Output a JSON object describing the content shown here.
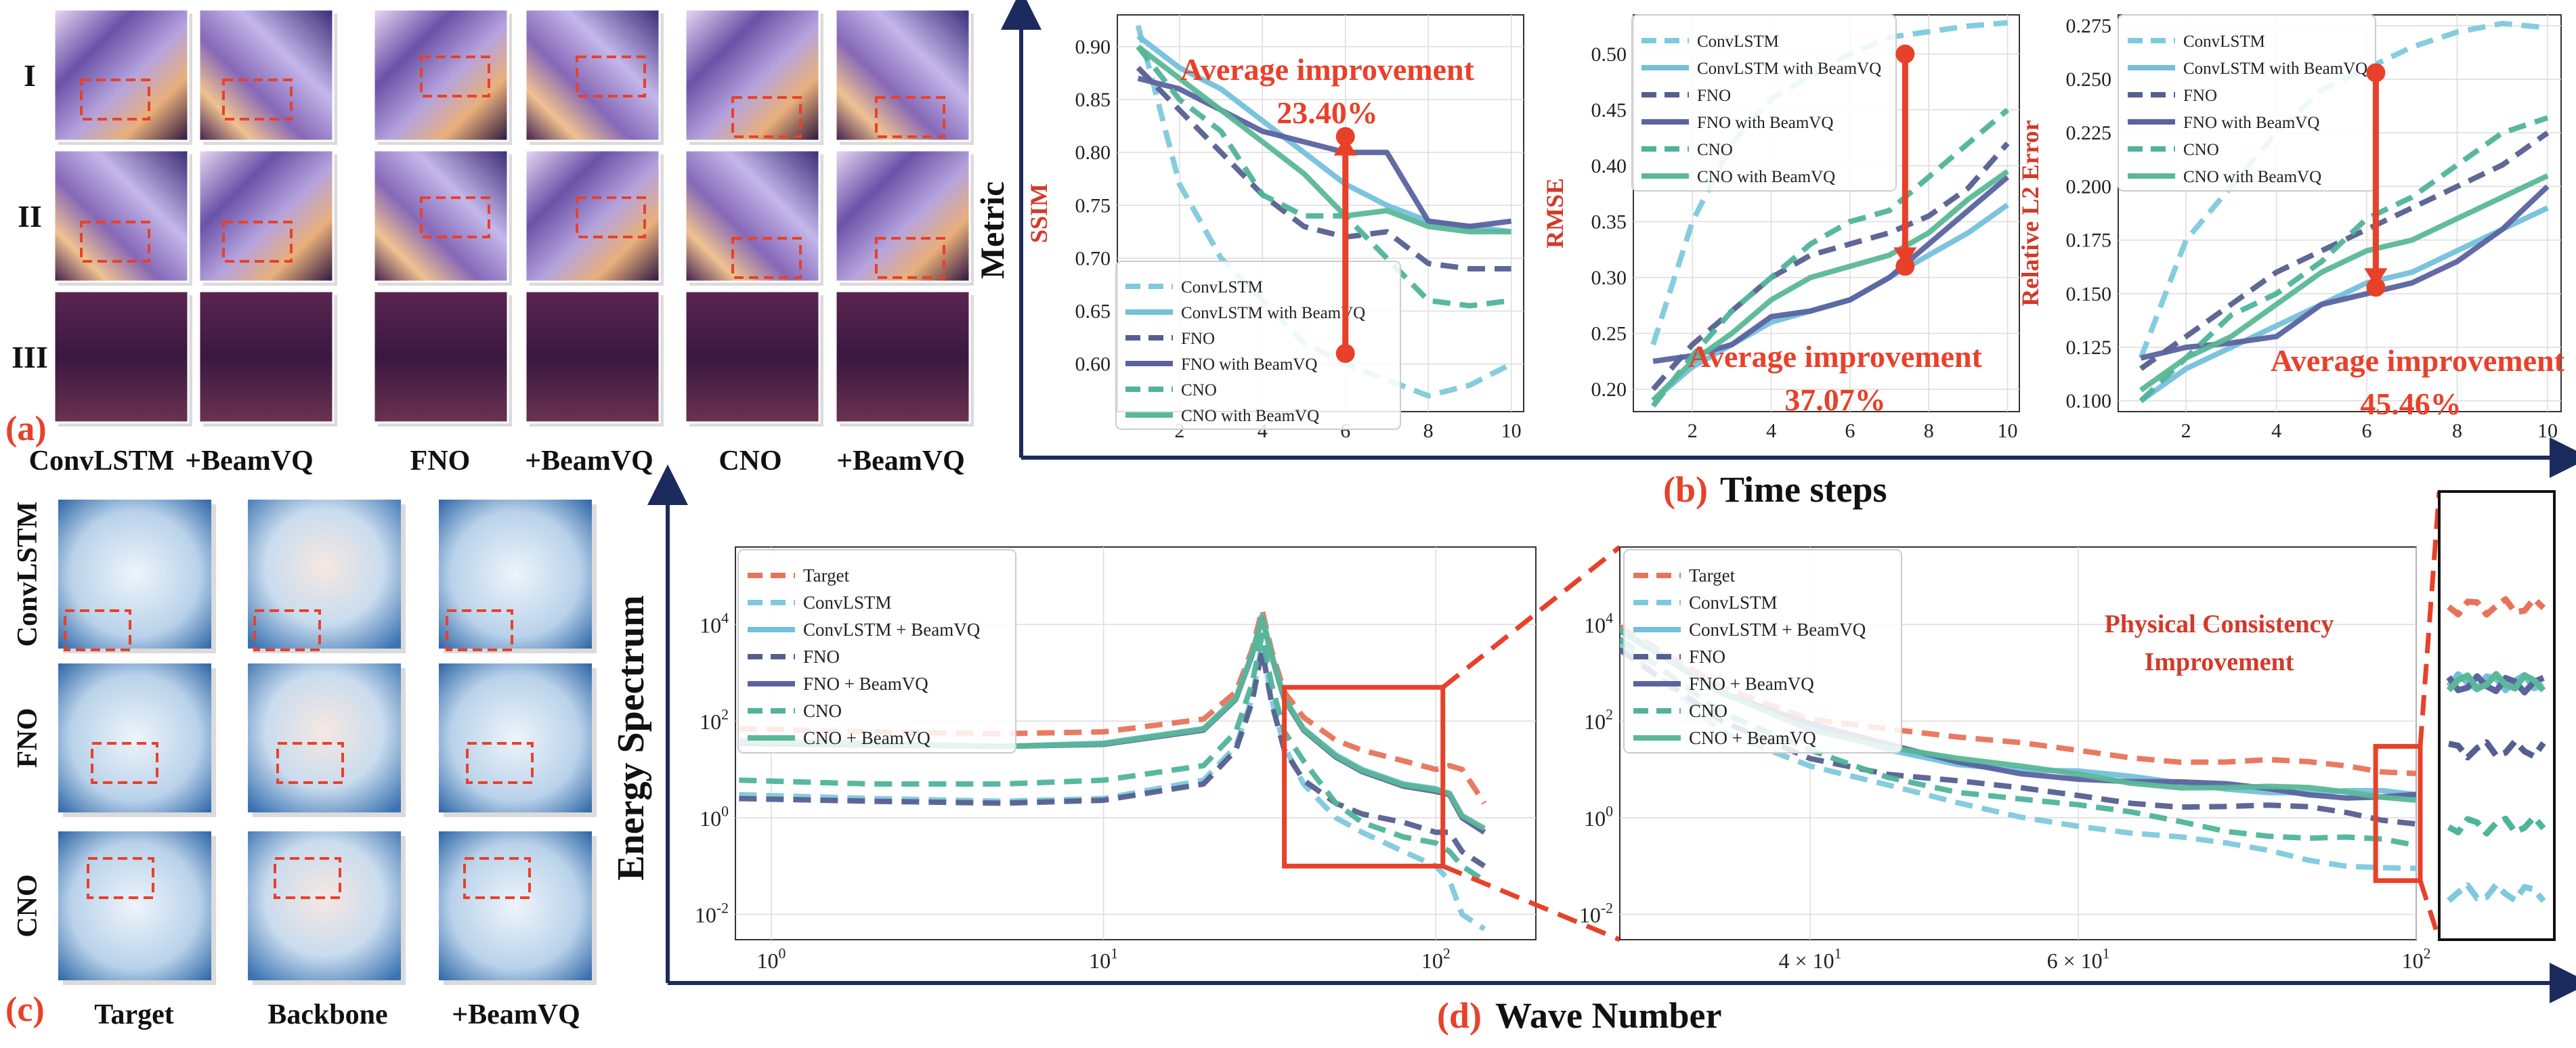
{
  "panel_a": {
    "tag": "(a)",
    "rows": [
      "I",
      "II",
      "III"
    ],
    "columns": [
      "ConvLSTM",
      "+BeamVQ",
      "FNO",
      "+BeamVQ",
      "CNO",
      "+BeamVQ"
    ]
  },
  "panel_c": {
    "tag": "(c)",
    "rows": [
      "ConvLSTM",
      "FNO",
      "CNO"
    ],
    "columns": [
      "Target",
      "Backbone",
      "+BeamVQ"
    ]
  },
  "panel_b": {
    "tag": "(b)",
    "xlabel": "Time steps",
    "ylabel": "Metric"
  },
  "panel_d": {
    "tag": "(d)",
    "xlabel": "Wave Number",
    "ylabel": "Energy Spectrum",
    "annotation": [
      "Physical  Consistency",
      "Improvement"
    ]
  },
  "colors": {
    "convlstm": "#7ec9dd",
    "convlstm_bv": "#74c0dc",
    "fno": "#555f8f",
    "fno_bv": "#5b639f",
    "cno": "#4fb49a",
    "cno_bv": "#5ab897",
    "target": "#e8735a",
    "accent": "#e8412a",
    "navy": "#1c2b5e"
  },
  "chart_data": [
    {
      "type": "line",
      "title": "",
      "ylabel": "SSIM",
      "xlabel": "",
      "x": [
        1,
        2,
        3,
        4,
        5,
        6,
        7,
        8,
        9,
        10
      ],
      "xlim": [
        0.5,
        10.3
      ],
      "ylim": [
        0.555,
        0.93
      ],
      "xticks": [
        2,
        4,
        6,
        8,
        10
      ],
      "yticks": [
        0.6,
        0.65,
        0.7,
        0.75,
        0.8,
        0.85,
        0.9
      ],
      "series": [
        {
          "name": "ConvLSTM",
          "style": "dash",
          "color": "#7ec9dd",
          "values": [
            0.92,
            0.77,
            0.7,
            0.66,
            0.62,
            0.6,
            0.585,
            0.57,
            0.58,
            0.6
          ]
        },
        {
          "name": "ConvLSTM with BeamVQ",
          "style": "solid",
          "color": "#74c0dc",
          "values": [
            0.91,
            0.88,
            0.86,
            0.83,
            0.8,
            0.77,
            0.75,
            0.735,
            0.73,
            0.725
          ]
        },
        {
          "name": "FNO",
          "style": "dash",
          "color": "#555f8f",
          "values": [
            0.88,
            0.84,
            0.8,
            0.76,
            0.73,
            0.72,
            0.725,
            0.695,
            0.69,
            0.69
          ]
        },
        {
          "name": "FNO with BeamVQ",
          "style": "solid",
          "color": "#5b639f",
          "values": [
            0.87,
            0.86,
            0.84,
            0.82,
            0.81,
            0.8,
            0.8,
            0.735,
            0.73,
            0.735
          ]
        },
        {
          "name": "CNO",
          "style": "dash",
          "color": "#4fb49a",
          "values": [
            0.9,
            0.85,
            0.82,
            0.76,
            0.74,
            0.74,
            0.7,
            0.66,
            0.655,
            0.66
          ]
        },
        {
          "name": "CNO with BeamVQ",
          "style": "solid",
          "color": "#5ab897",
          "values": [
            0.9,
            0.87,
            0.84,
            0.81,
            0.78,
            0.74,
            0.745,
            0.73,
            0.725,
            0.725
          ]
        }
      ],
      "legend": "bottom-center",
      "annotation": {
        "text": "Average improvement",
        "value": "23.40%",
        "arrow_x": 6,
        "from": 0.61,
        "to": 0.815
      }
    },
    {
      "type": "line",
      "title": "",
      "ylabel": "RMSE",
      "xlabel": "",
      "x": [
        1,
        2,
        3,
        4,
        5,
        6,
        7,
        8,
        9,
        10
      ],
      "xlim": [
        0.5,
        10.3
      ],
      "ylim": [
        0.18,
        0.535
      ],
      "xticks": [
        2,
        4,
        6,
        8,
        10
      ],
      "yticks": [
        0.2,
        0.25,
        0.3,
        0.35,
        0.4,
        0.45,
        0.5
      ],
      "series": [
        {
          "name": "ConvLSTM",
          "style": "dash",
          "color": "#7ec9dd",
          "values": [
            0.24,
            0.35,
            0.42,
            0.46,
            0.48,
            0.5,
            0.515,
            0.52,
            0.525,
            0.528
          ]
        },
        {
          "name": "ConvLSTM with BeamVQ",
          "style": "solid",
          "color": "#74c0dc",
          "values": [
            0.19,
            0.22,
            0.24,
            0.26,
            0.27,
            0.28,
            0.3,
            0.32,
            0.34,
            0.365
          ]
        },
        {
          "name": "FNO",
          "style": "dash",
          "color": "#555f8f",
          "values": [
            0.2,
            0.24,
            0.27,
            0.3,
            0.32,
            0.33,
            0.34,
            0.355,
            0.38,
            0.42
          ]
        },
        {
          "name": "FNO with BeamVQ",
          "style": "solid",
          "color": "#5b639f",
          "values": [
            0.225,
            0.23,
            0.24,
            0.265,
            0.27,
            0.28,
            0.3,
            0.33,
            0.36,
            0.39
          ]
        },
        {
          "name": "CNO",
          "style": "dash",
          "color": "#4fb49a",
          "values": [
            0.185,
            0.23,
            0.27,
            0.3,
            0.33,
            0.35,
            0.36,
            0.39,
            0.42,
            0.45
          ]
        },
        {
          "name": "CNO with BeamVQ",
          "style": "solid",
          "color": "#5ab897",
          "values": [
            0.19,
            0.225,
            0.25,
            0.28,
            0.3,
            0.31,
            0.32,
            0.34,
            0.37,
            0.395
          ]
        }
      ],
      "legend": "top-left",
      "annotation": {
        "text": "Average improvement",
        "value": "37.07%",
        "arrow_x": 7.4,
        "from": 0.5,
        "to": 0.31
      }
    },
    {
      "type": "line",
      "title": "",
      "ylabel": "Relative L2 Error",
      "xlabel": "",
      "x": [
        1,
        2,
        3,
        4,
        5,
        6,
        7,
        8,
        9,
        10
      ],
      "xlim": [
        0.5,
        10.3
      ],
      "ylim": [
        0.095,
        0.28
      ],
      "xticks": [
        2,
        4,
        6,
        8,
        10
      ],
      "yticks": [
        0.1,
        0.125,
        0.15,
        0.175,
        0.2,
        0.225,
        0.25,
        0.275
      ],
      "series": [
        {
          "name": "ConvLSTM",
          "style": "dash",
          "color": "#7ec9dd",
          "values": [
            0.12,
            0.175,
            0.2,
            0.225,
            0.245,
            0.255,
            0.265,
            0.272,
            0.276,
            0.274
          ]
        },
        {
          "name": "ConvLSTM with BeamVQ",
          "style": "solid",
          "color": "#74c0dc",
          "values": [
            0.1,
            0.115,
            0.125,
            0.135,
            0.145,
            0.155,
            0.16,
            0.17,
            0.18,
            0.19
          ]
        },
        {
          "name": "FNO",
          "style": "dash",
          "color": "#555f8f",
          "values": [
            0.115,
            0.13,
            0.145,
            0.16,
            0.17,
            0.18,
            0.19,
            0.2,
            0.21,
            0.225
          ]
        },
        {
          "name": "FNO with BeamVQ",
          "style": "solid",
          "color": "#5b639f",
          "values": [
            0.12,
            0.125,
            0.127,
            0.13,
            0.145,
            0.15,
            0.155,
            0.165,
            0.18,
            0.2
          ]
        },
        {
          "name": "CNO",
          "style": "dash",
          "color": "#4fb49a",
          "values": [
            0.1,
            0.12,
            0.14,
            0.15,
            0.165,
            0.185,
            0.195,
            0.21,
            0.225,
            0.232
          ]
        },
        {
          "name": "CNO with BeamVQ",
          "style": "solid",
          "color": "#5ab897",
          "values": [
            0.105,
            0.12,
            0.13,
            0.145,
            0.16,
            0.17,
            0.175,
            0.185,
            0.195,
            0.205
          ]
        }
      ],
      "legend": "top-left",
      "annotation": {
        "text": "Average improvement",
        "value": "45.46%",
        "arrow_x": 6.2,
        "from": 0.253,
        "to": 0.153
      }
    },
    {
      "type": "line",
      "title": "",
      "xscale": "log",
      "yscale": "log",
      "xlabel": "",
      "ylabel": "",
      "xlim": [
        0.78,
        200
      ],
      "ylim": [
        0.003,
        400000
      ],
      "xticks": [
        {
          "v": 1,
          "label": "10^0"
        },
        {
          "v": 10,
          "label": "10^1"
        },
        {
          "v": 100,
          "label": "10^2"
        }
      ],
      "yticks": [
        {
          "v": 0.01,
          "label": "10^-2"
        },
        {
          "v": 1,
          "label": "10^0"
        },
        {
          "v": 100,
          "label": "10^2"
        },
        {
          "v": 10000,
          "label": "10^4"
        }
      ],
      "x": [
        0.8,
        2,
        5,
        10,
        20,
        25,
        28,
        30,
        32,
        35,
        40,
        50,
        60,
        80,
        100,
        110,
        120,
        140
      ],
      "series": [
        {
          "name": "Target",
          "style": "dash",
          "color": "#e8735a",
          "values": [
            70,
            60,
            55,
            60,
            110,
            400,
            3000,
            20000,
            3000,
            400,
            120,
            40,
            25,
            15,
            10,
            12,
            10,
            2
          ]
        },
        {
          "name": "ConvLSTM",
          "style": "dash",
          "color": "#7ec9dd",
          "values": [
            3,
            2.5,
            2.2,
            2.5,
            6,
            30,
            300,
            4000,
            300,
            30,
            5,
            1,
            0.5,
            0.2,
            0.1,
            0.05,
            0.01,
            0.005
          ]
        },
        {
          "name": "ConvLSTM + BeamVQ",
          "style": "solid",
          "color": "#74c0dc",
          "values": [
            40,
            35,
            30,
            35,
            70,
            300,
            2500,
            15000,
            2500,
            300,
            70,
            20,
            10,
            5,
            4,
            3,
            1,
            0.5
          ]
        },
        {
          "name": "FNO",
          "style": "dash",
          "color": "#555f8f",
          "values": [
            2.5,
            2.2,
            2.0,
            2.3,
            5,
            25,
            250,
            3000,
            250,
            25,
            6,
            2,
            1.2,
            0.8,
            0.5,
            0.5,
            0.2,
            0.1
          ]
        },
        {
          "name": "FNO + BeamVQ",
          "style": "solid",
          "color": "#5b639f",
          "values": [
            35,
            32,
            30,
            33,
            65,
            280,
            2300,
            14000,
            2300,
            280,
            65,
            18,
            9,
            4.5,
            3.5,
            3,
            1,
            0.5
          ]
        },
        {
          "name": "CNO",
          "style": "dash",
          "color": "#4fb49a",
          "values": [
            6,
            5,
            5,
            6,
            12,
            60,
            600,
            6000,
            600,
            60,
            15,
            2,
            0.8,
            0.4,
            0.3,
            0.2,
            0.1,
            0.05
          ]
        },
        {
          "name": "CNO + BeamVQ",
          "style": "solid",
          "color": "#5ab897",
          "values": [
            38,
            33,
            30,
            34,
            68,
            290,
            2400,
            14500,
            2400,
            290,
            68,
            19,
            9.5,
            4.8,
            3.8,
            3.2,
            1.1,
            0.6
          ]
        }
      ],
      "legend": "top-left",
      "zoom_box": {
        "x": [
          35,
          105
        ],
        "y": [
          0.1,
          500
        ]
      }
    },
    {
      "type": "line",
      "title": "",
      "xscale": "log",
      "yscale": "log",
      "xlabel": "",
      "ylabel": "",
      "xlim": [
        30,
        100
      ],
      "ylim": [
        0.003,
        400000
      ],
      "xticks": [
        {
          "v": 40,
          "label": "4 × 10^1"
        },
        {
          "v": 60,
          "label": "6 × 10^1"
        },
        {
          "v": 100,
          "label": "10^2"
        }
      ],
      "yticks": [
        {
          "v": 0.01,
          "label": "10^-2"
        },
        {
          "v": 1,
          "label": "10^0"
        },
        {
          "v": 100,
          "label": "10^2"
        },
        {
          "v": 10000,
          "label": "10^4"
        }
      ],
      "x": [
        30,
        35,
        40,
        45,
        50,
        55,
        60,
        65,
        70,
        75,
        80,
        85,
        90,
        95,
        100
      ],
      "series": [
        {
          "name": "Target",
          "style": "dash",
          "color": "#e8735a",
          "values": [
            9000,
            500,
            130,
            70,
            40,
            30,
            24,
            20,
            17,
            15,
            14,
            12,
            11,
            10,
            10
          ]
        },
        {
          "name": "ConvLSTM",
          "style": "dash",
          "color": "#7ec9dd",
          "values": [
            4000,
            60,
            10,
            4,
            2,
            1.2,
            0.8,
            0.5,
            0.35,
            0.25,
            0.2,
            0.15,
            0.12,
            0.1,
            0.08
          ]
        },
        {
          "name": "ConvLSTM + BeamVQ",
          "style": "solid",
          "color": "#74c0dc",
          "values": [
            8000,
            400,
            80,
            30,
            15,
            10,
            8,
            6,
            5,
            4.5,
            4,
            3.5,
            3.2,
            3,
            2.8
          ]
        },
        {
          "name": "FNO",
          "style": "dash",
          "color": "#555f8f",
          "values": [
            3000,
            100,
            20,
            8,
            5,
            3.5,
            2.8,
            2.3,
            2,
            1.8,
            1.6,
            1.4,
            1.2,
            1,
            0.9
          ]
        },
        {
          "name": "FNO + BeamVQ",
          "style": "solid",
          "color": "#5b639f",
          "values": [
            7500,
            380,
            75,
            28,
            14,
            9.5,
            7.5,
            5.8,
            4.8,
            4.2,
            3.8,
            3.4,
            3.1,
            2.9,
            2.7
          ]
        },
        {
          "name": "CNO",
          "style": "dash",
          "color": "#4fb49a",
          "values": [
            5000,
            150,
            25,
            8,
            4,
            2.5,
            1.6,
            1.1,
            0.8,
            0.6,
            0.5,
            0.4,
            0.35,
            0.3,
            0.25
          ]
        },
        {
          "name": "CNO + BeamVQ",
          "style": "solid",
          "color": "#5ab897",
          "values": [
            7800,
            390,
            78,
            29,
            14.5,
            9.8,
            7.8,
            6,
            5,
            4.4,
            3.9,
            3.5,
            3.2,
            3,
            2.8
          ]
        }
      ],
      "legend": "top-left",
      "zoom_box": {
        "x": [
          96,
          100
        ],
        "y": [
          0.05,
          30
        ]
      }
    }
  ]
}
